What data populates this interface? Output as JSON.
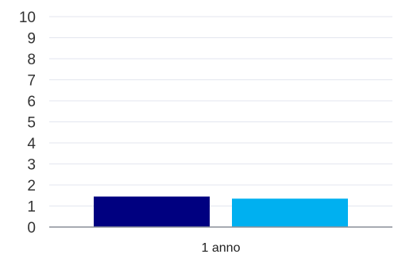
{
  "chart_data": {
    "type": "bar",
    "title": "",
    "xlabel": "",
    "ylabel": "",
    "categories": [
      "1 anno"
    ],
    "series": [
      {
        "values": [
          1.45
        ],
        "color": "#000080"
      },
      {
        "values": [
          1.35
        ],
        "color": "#00b0f0"
      }
    ],
    "ylim": [
      0,
      10
    ],
    "yticks": [
      "0",
      "1",
      "2",
      "3",
      "4",
      "5",
      "6",
      "7",
      "8",
      "9",
      "10"
    ],
    "grid": true,
    "legend": "none"
  }
}
